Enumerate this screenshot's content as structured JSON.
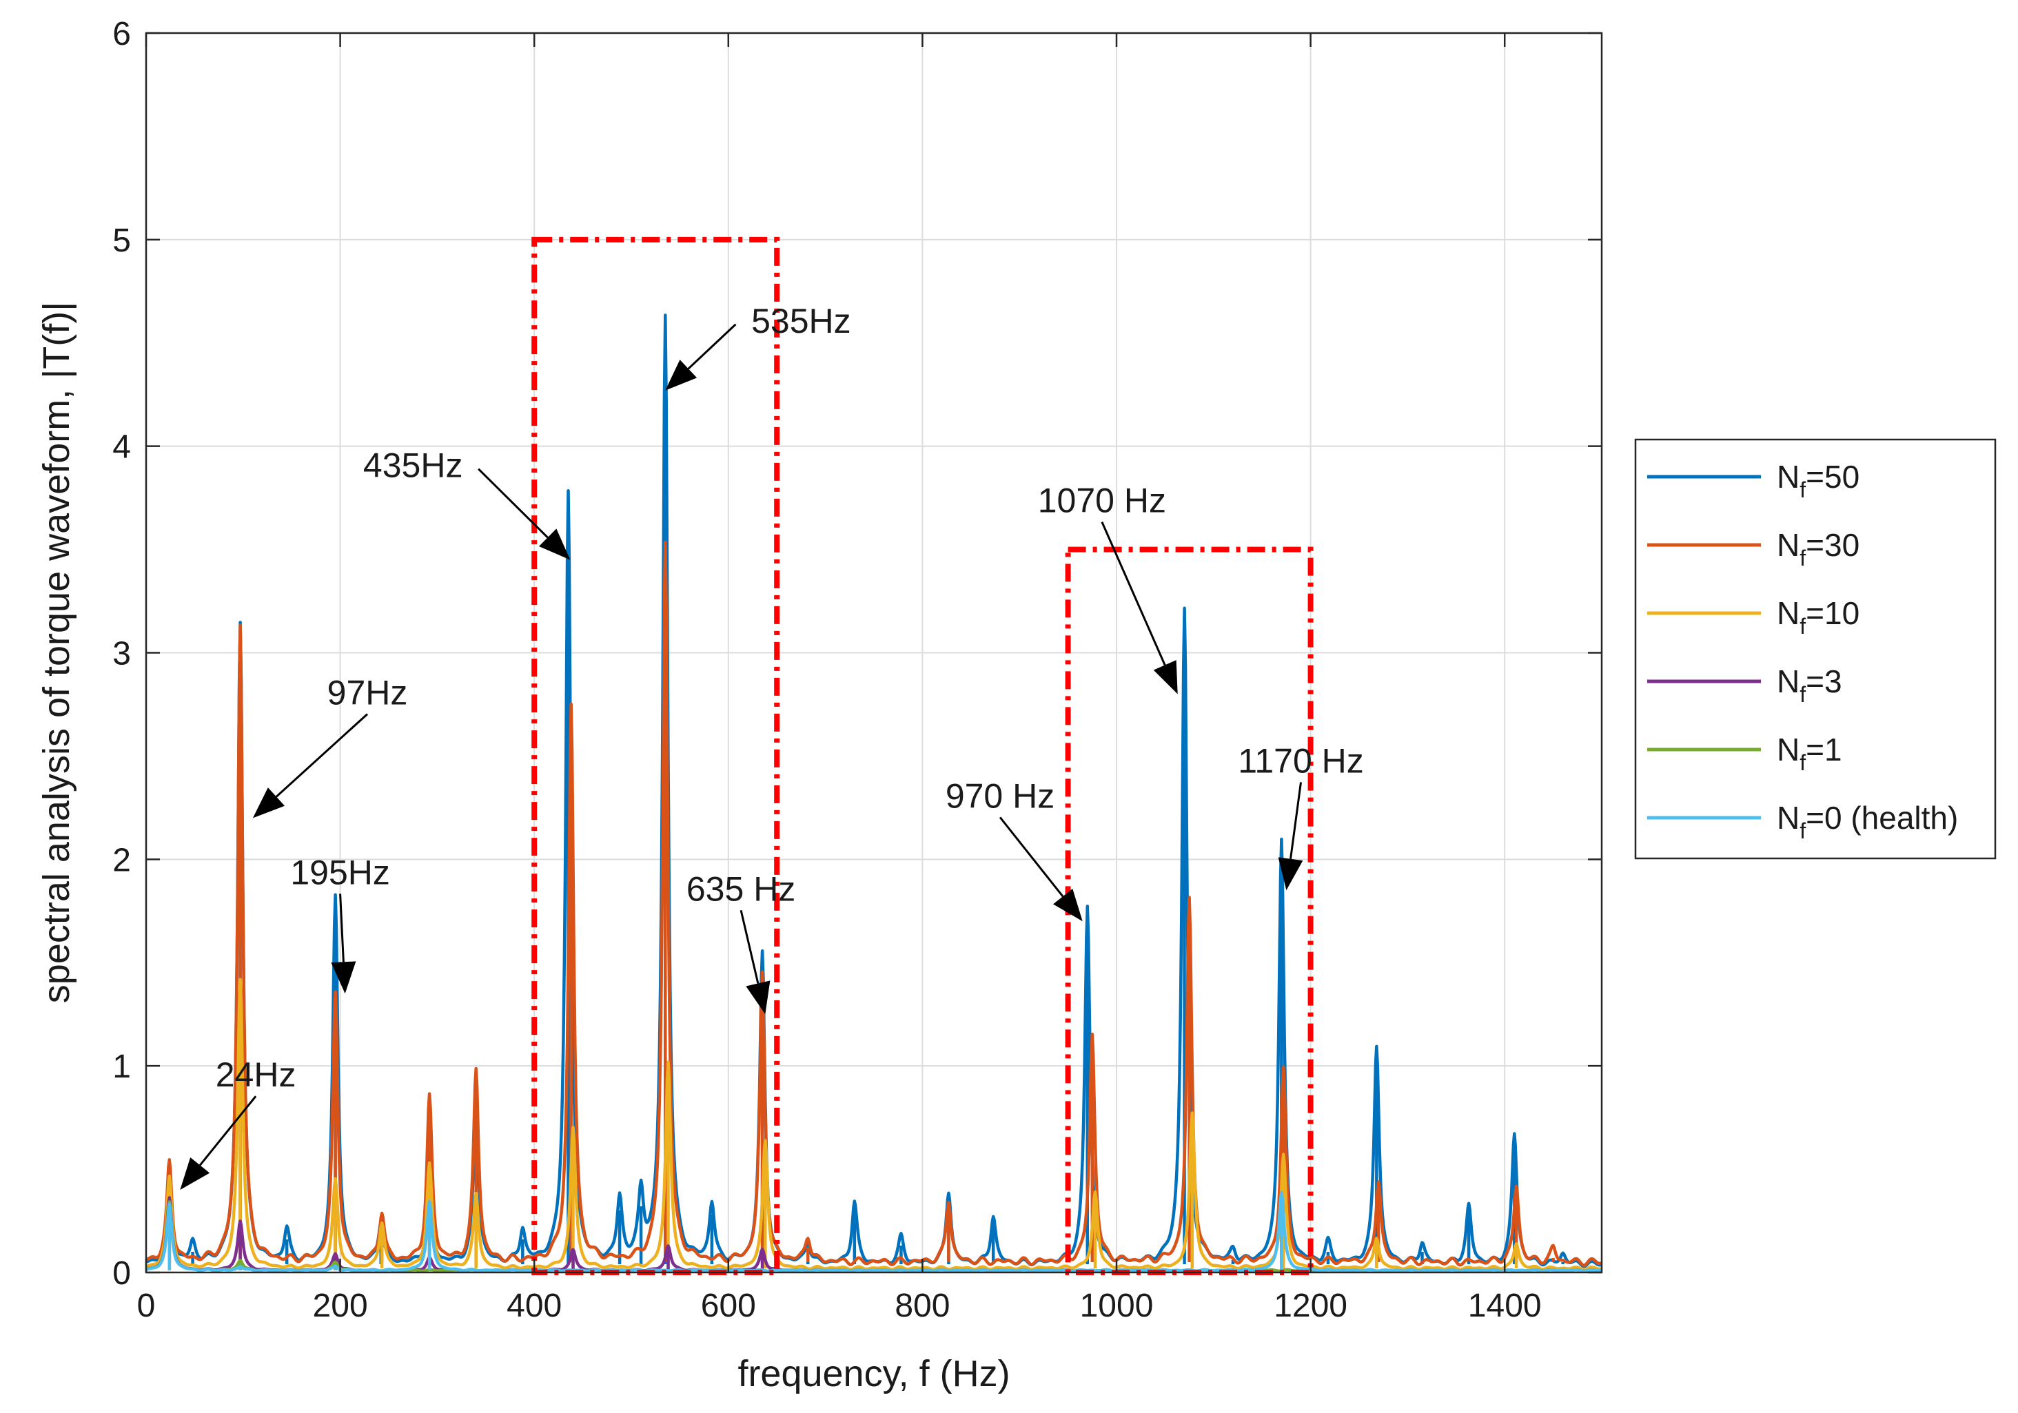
{
  "chart_data": {
    "type": "line",
    "title": "",
    "xlabel": "frequency, f (Hz)",
    "ylabel": "spectral analysis of torque waveform, |T(f)|",
    "xlim": [
      0,
      1500
    ],
    "ylim": [
      0,
      6
    ],
    "xticks": [
      0,
      200,
      400,
      600,
      800,
      1000,
      1200,
      1400
    ],
    "yticks": [
      0,
      1,
      2,
      3,
      4,
      5,
      6
    ],
    "grid": true,
    "legend_position": "right",
    "series": [
      {
        "name": "N_f=50",
        "label_main": "N",
        "label_sub": "f",
        "label_rest": "=50",
        "color": "#0072BD",
        "baseline": 0.04,
        "peaks": [
          [
            24,
            0.38
          ],
          [
            48,
            0.1
          ],
          [
            97,
            3.11
          ],
          [
            145,
            0.16
          ],
          [
            195,
            1.78
          ],
          [
            242,
            0.2
          ],
          [
            292,
            0.38
          ],
          [
            340,
            0.76
          ],
          [
            388,
            0.16
          ],
          [
            435,
            3.73
          ],
          [
            488,
            0.3
          ],
          [
            510,
            0.32
          ],
          [
            535,
            4.58
          ],
          [
            583,
            0.28
          ],
          [
            635,
            1.5
          ],
          [
            682,
            0.1
          ],
          [
            730,
            0.3
          ],
          [
            778,
            0.13
          ],
          [
            827,
            0.35
          ],
          [
            873,
            0.23
          ],
          [
            970,
            1.73
          ],
          [
            1070,
            3.17
          ],
          [
            1120,
            0.06
          ],
          [
            1170,
            2.06
          ],
          [
            1218,
            0.1
          ],
          [
            1268,
            1.06
          ],
          [
            1315,
            0.1
          ],
          [
            1363,
            0.28
          ],
          [
            1410,
            0.63
          ],
          [
            1460,
            0.05
          ]
        ]
      },
      {
        "name": "N_f=30",
        "label_main": "N",
        "label_sub": "f",
        "label_rest": "=30",
        "color": "#D95319",
        "baseline": 0.05,
        "peaks": [
          [
            24,
            0.48
          ],
          [
            97,
            3.09
          ],
          [
            195,
            1.3
          ],
          [
            243,
            0.24
          ],
          [
            292,
            0.79
          ],
          [
            340,
            0.93
          ],
          [
            438,
            2.69
          ],
          [
            535,
            3.48
          ],
          [
            635,
            1.39
          ],
          [
            682,
            0.12
          ],
          [
            827,
            0.3
          ],
          [
            975,
            1.1
          ],
          [
            1075,
            1.75
          ],
          [
            1172,
            0.94
          ],
          [
            1270,
            0.4
          ],
          [
            1412,
            0.37
          ],
          [
            1450,
            0.07
          ]
        ]
      },
      {
        "name": "N_f=10",
        "label_main": "N",
        "label_sub": "f",
        "label_rest": "=10",
        "color": "#EDB120",
        "baseline": 0.02,
        "peaks": [
          [
            24,
            0.44
          ],
          [
            97,
            1.4
          ],
          [
            195,
            0.43
          ],
          [
            243,
            0.22
          ],
          [
            292,
            0.5
          ],
          [
            340,
            0.36
          ],
          [
            440,
            0.68
          ],
          [
            538,
            1.0
          ],
          [
            638,
            0.62
          ],
          [
            978,
            0.37
          ],
          [
            1078,
            0.75
          ],
          [
            1172,
            0.55
          ],
          [
            1268,
            0.15
          ],
          [
            1412,
            0.12
          ]
        ]
      },
      {
        "name": "N_f=3",
        "label_main": "N",
        "label_sub": "f",
        "label_rest": "=3",
        "color": "#7E2F8E",
        "baseline": 0.01,
        "peaks": [
          [
            24,
            0.35
          ],
          [
            97,
            0.24
          ],
          [
            195,
            0.08
          ],
          [
            292,
            0.06
          ],
          [
            440,
            0.1
          ],
          [
            538,
            0.12
          ],
          [
            635,
            0.1
          ]
        ]
      },
      {
        "name": "N_f=1",
        "label_main": "N",
        "label_sub": "f",
        "label_rest": "=1",
        "color": "#77AC30",
        "baseline": 0.01,
        "peaks": [
          [
            24,
            0.33
          ],
          [
            97,
            0.05
          ],
          [
            195,
            0.04
          ]
        ]
      },
      {
        "name": "N_f=0 (health)",
        "label_main": "N",
        "label_sub": "f",
        "label_rest": "=0 (health)",
        "color": "#4DBEEE",
        "baseline": 0.01,
        "peaks": [
          [
            24,
            0.32
          ],
          [
            97,
            0.02
          ],
          [
            195,
            0.02
          ],
          [
            292,
            0.33
          ],
          [
            1170,
            0.38
          ]
        ]
      }
    ],
    "highlight_boxes": [
      {
        "x": [
          400,
          650
        ],
        "y": [
          0,
          5
        ],
        "color": "#FF0000"
      },
      {
        "x": [
          950,
          1200
        ],
        "y": [
          0,
          3.5
        ],
        "color": "#FF0000"
      }
    ],
    "annotations": [
      {
        "text": "24Hz",
        "text_at": [
          113,
          0.9
        ],
        "arrow_to": [
          35,
          0.4
        ]
      },
      {
        "text": "97Hz",
        "text_at": [
          228,
          2.75
        ],
        "arrow_to": [
          110,
          2.2
        ]
      },
      {
        "text": "195Hz",
        "text_at": [
          200,
          1.88
        ],
        "arrow_to": [
          205,
          1.35
        ]
      },
      {
        "text": "435Hz",
        "text_at": [
          275,
          3.85
        ],
        "arrow_to": [
          437,
          3.45
        ]
      },
      {
        "text": "535Hz",
        "text_at": [
          675,
          4.55
        ],
        "arrow_to": [
          535,
          4.27
        ]
      },
      {
        "text": "635 Hz",
        "text_at": [
          613,
          1.8
        ],
        "arrow_to": [
          638,
          1.25
        ]
      },
      {
        "text": "970 Hz",
        "text_at": [
          880,
          2.25
        ],
        "arrow_to": [
          965,
          1.7
        ]
      },
      {
        "text": "1070 Hz",
        "text_at": [
          985,
          3.68
        ],
        "arrow_to": [
          1063,
          2.8
        ]
      },
      {
        "text": "1170 Hz",
        "text_at": [
          1190,
          2.42
        ],
        "arrow_to": [
          1175,
          1.85
        ]
      }
    ]
  }
}
